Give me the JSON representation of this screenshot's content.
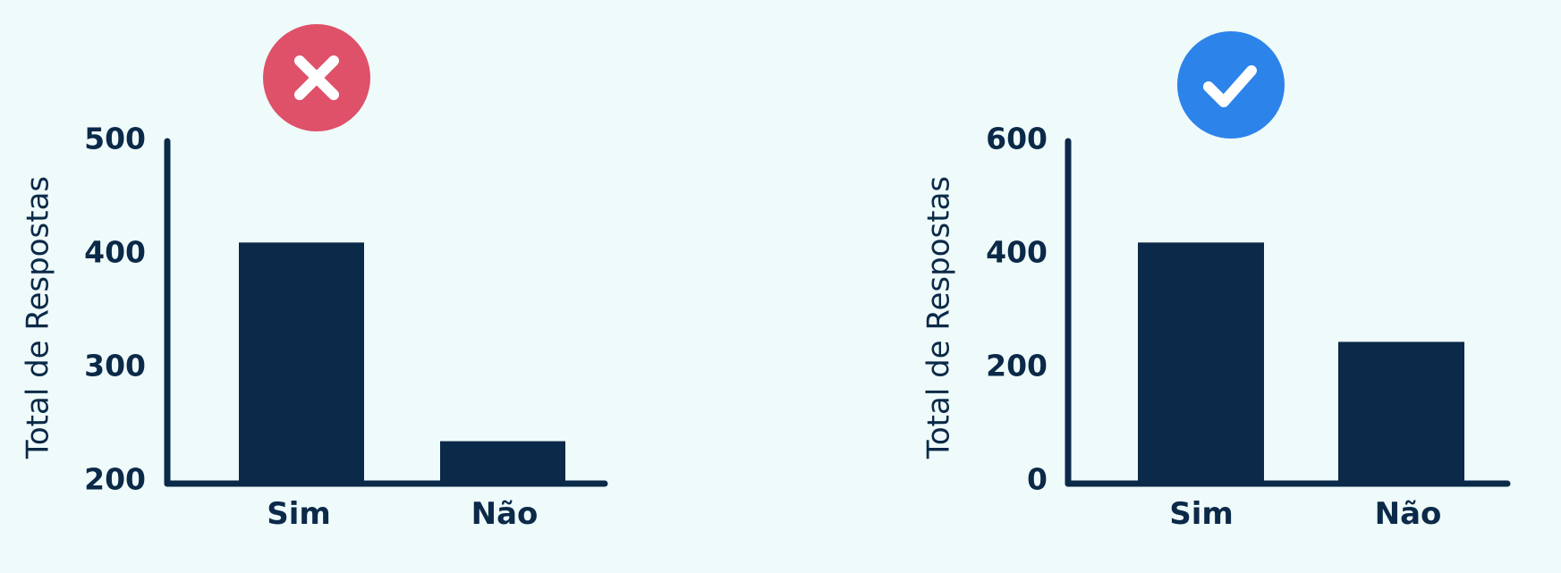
{
  "colors": {
    "background": "#effbfa",
    "bar": "#0b2948",
    "axis": "#0b2948",
    "text": "#0b2948",
    "bad_badge": "#de5169",
    "good_badge": "#2c83ea",
    "badge_glyph": "#ffffff"
  },
  "chart_data": [
    {
      "type": "bar",
      "badge": {
        "icon": "close-icon"
      },
      "categories": [
        "Sim",
        "Não"
      ],
      "values": [
        410,
        235
      ],
      "title": "",
      "xlabel": "",
      "ylabel": "Total de Respostas",
      "ylim": [
        200,
        500
      ],
      "yticks": [
        "200",
        "300",
        "400",
        "500"
      ],
      "grid": false
    },
    {
      "type": "bar",
      "badge": {
        "icon": "check-icon"
      },
      "categories": [
        "Sim",
        "Não"
      ],
      "values": [
        420,
        245
      ],
      "title": "",
      "xlabel": "",
      "ylabel": "Total de Respostas",
      "ylim": [
        0,
        600
      ],
      "yticks": [
        "0",
        "200",
        "400",
        "600"
      ],
      "grid": false
    }
  ]
}
